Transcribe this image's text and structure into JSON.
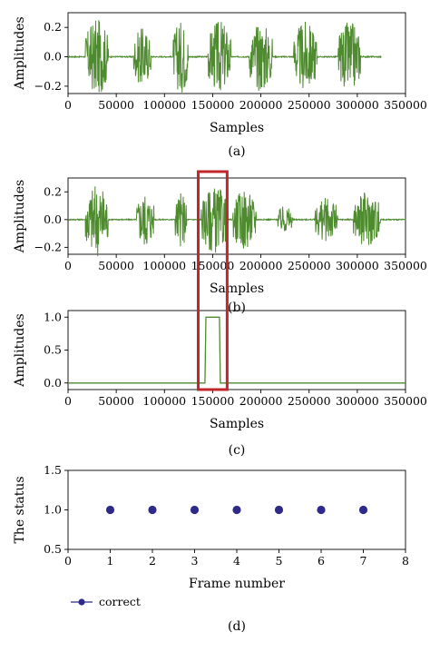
{
  "chart_data": [
    {
      "type": "line",
      "caption": "(a)",
      "xlabel": "Samples",
      "ylabel": "Amplitudes",
      "xlim": [
        0,
        350000
      ],
      "ylim": [
        -0.25,
        0.3
      ],
      "xticks": [
        0,
        50000,
        100000,
        150000,
        200000,
        250000,
        300000,
        350000
      ],
      "xticklabels": [
        "0",
        "50000",
        "100000",
        "150000",
        "200000",
        "250000",
        "300000",
        "350000"
      ],
      "yticks": [
        0.2,
        0.0,
        -0.2
      ],
      "yticklabels": [
        "0.2",
        "0.0",
        "−0.2"
      ],
      "color": "#4e8a2e",
      "x_range": [
        0,
        325000
      ],
      "bursts": [
        {
          "center": 30000,
          "width": 12000,
          "amp": 0.26
        },
        {
          "center": 77000,
          "width": 9000,
          "amp": 0.2
        },
        {
          "center": 117000,
          "width": 8000,
          "amp": 0.25
        },
        {
          "center": 157000,
          "width": 12000,
          "amp": 0.25
        },
        {
          "center": 200000,
          "width": 12000,
          "amp": 0.24
        },
        {
          "center": 246000,
          "width": 12000,
          "amp": 0.24
        },
        {
          "center": 292000,
          "width": 12000,
          "amp": 0.24
        }
      ]
    },
    {
      "type": "line",
      "caption": "(b)",
      "xlabel": "Samples",
      "ylabel": "Amplitudes",
      "xlim": [
        0,
        350000
      ],
      "ylim": [
        -0.25,
        0.3
      ],
      "xticks": [
        0,
        50000,
        100000,
        150000,
        200000,
        250000,
        300000,
        350000
      ],
      "xticklabels": [
        "0",
        "50000",
        "100000",
        "150000",
        "200000",
        "250000",
        "300000",
        "350000"
      ],
      "yticks": [
        0.2,
        0.0,
        -0.2
      ],
      "yticklabels": [
        "0.2",
        "0.0",
        "−0.2"
      ],
      "color": "#4e8a2e",
      "x_range": [
        0,
        350000
      ],
      "bursts": [
        {
          "center": 30000,
          "width": 12000,
          "amp": 0.27
        },
        {
          "center": 80000,
          "width": 9000,
          "amp": 0.2
        },
        {
          "center": 117000,
          "width": 6000,
          "amp": 0.2
        },
        {
          "center": 152000,
          "width": 14000,
          "amp": 0.24
        },
        {
          "center": 183000,
          "width": 12000,
          "amp": 0.22
        },
        {
          "center": 225000,
          "width": 8000,
          "amp": 0.1
        },
        {
          "center": 268000,
          "width": 12000,
          "amp": 0.16
        },
        {
          "center": 310000,
          "width": 14000,
          "amp": 0.2
        }
      ],
      "highlight": {
        "x_from": 135000,
        "x_to": 165000,
        "color": "#c0262a"
      }
    },
    {
      "type": "line",
      "caption": "(c)",
      "xlabel": "Samples",
      "ylabel": "Amplitudes",
      "xlim": [
        0,
        350000
      ],
      "ylim": [
        -0.1,
        1.1
      ],
      "xticks": [
        0,
        50000,
        100000,
        150000,
        200000,
        250000,
        300000,
        350000
      ],
      "xticklabels": [
        "0",
        "50000",
        "100000",
        "150000",
        "200000",
        "250000",
        "300000",
        "350000"
      ],
      "yticks": [
        1.0,
        0.5,
        0.0
      ],
      "yticklabels": [
        "1.0",
        "0.5",
        "0.0"
      ],
      "color": "#4e8a2e",
      "x": [
        0,
        142000,
        143000,
        157000,
        158000,
        350000
      ],
      "y": [
        0,
        0,
        1,
        1,
        0,
        0
      ]
    },
    {
      "type": "scatter",
      "caption": "(d)",
      "xlabel": "Frame number",
      "ylabel": "The status",
      "xlim": [
        0,
        8
      ],
      "ylim": [
        0.5,
        1.5
      ],
      "xticks": [
        0,
        1,
        2,
        3,
        4,
        5,
        6,
        7,
        8
      ],
      "xticklabels": [
        "0",
        "1",
        "2",
        "3",
        "4",
        "5",
        "6",
        "7",
        "8"
      ],
      "yticks": [
        1.5,
        1.0,
        0.5
      ],
      "yticklabels": [
        "1.5",
        "1.0",
        "0.5"
      ],
      "color": "#2e2a8a",
      "series": [
        {
          "name": "correct",
          "x": [
            1,
            2,
            3,
            4,
            5,
            6,
            7
          ],
          "y": [
            1.0,
            1.0,
            1.0,
            1.0,
            1.0,
            1.0,
            1.0
          ]
        }
      ],
      "legend": "bottom-left"
    }
  ]
}
